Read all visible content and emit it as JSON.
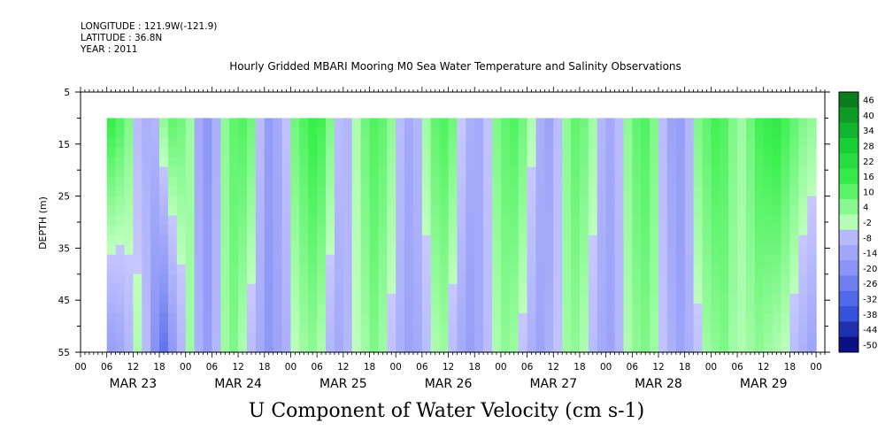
{
  "header": {
    "longitude": "LONGITUDE : 121.9W(-121.9)",
    "latitude": "LATITUDE : 36.8N",
    "year": "YEAR : 2011"
  },
  "chart_data": {
    "type": "heatmap",
    "title": "Hourly Gridded MBARI Mooring M0 Sea Water Temperature and Salinity Observations",
    "variable_label": "U Component of Water Velocity (cm s-1)",
    "ylabel": "DEPTH (m)",
    "ylim": [
      55,
      5
    ],
    "y_ticks": [
      5,
      15,
      25,
      35,
      45,
      55
    ],
    "x_hour_tick_labels": [
      "00",
      "06",
      "12",
      "18",
      "00",
      "06",
      "12",
      "18",
      "00",
      "06",
      "12",
      "18",
      "00",
      "06",
      "12",
      "18",
      "00",
      "06",
      "12",
      "18",
      "00",
      "06",
      "12",
      "18",
      "00",
      "06",
      "12",
      "18",
      "00"
    ],
    "x_day_labels": [
      "MAR 23",
      "MAR 24",
      "MAR 25",
      "MAR 26",
      "MAR 27",
      "MAR 28",
      "MAR 29"
    ],
    "data_depth_range_m": [
      10,
      55
    ],
    "data_time_range_hours_from_mar23_00": [
      7,
      168
    ],
    "colorbar_levels": [
      "46",
      "40",
      "34",
      "28",
      "22",
      "16",
      "10",
      "4",
      "-2",
      "-8",
      "-14",
      "-20",
      "-26",
      "-32",
      "-38",
      "-44",
      "-50"
    ],
    "colorbar_range": [
      -50,
      50
    ],
    "column_profiles": {
      "description_hours": [
        7,
        9,
        11,
        13,
        15,
        17,
        19,
        21,
        23,
        25,
        27,
        29,
        31,
        33,
        35,
        37,
        39,
        41,
        43,
        45,
        47,
        49,
        51,
        53,
        55,
        57,
        59,
        61,
        63,
        65,
        67,
        69,
        71,
        73,
        75,
        77,
        79,
        81,
        83,
        85,
        87,
        89,
        91,
        93,
        95,
        97,
        99,
        101,
        103,
        105,
        107,
        109,
        111,
        113,
        115,
        117,
        119,
        121,
        123,
        125,
        127,
        129,
        131,
        133,
        135,
        137,
        139,
        141,
        143,
        145,
        147,
        149,
        151,
        153,
        155,
        157,
        159,
        161,
        163,
        165,
        167
      ],
      "surface_u": [
        18,
        14,
        8,
        -4,
        -8,
        -6,
        6,
        12,
        10,
        4,
        -10,
        -16,
        -8,
        6,
        12,
        14,
        10,
        -4,
        -14,
        -10,
        -2,
        10,
        14,
        18,
        16,
        8,
        -4,
        -6,
        2,
        10,
        14,
        12,
        6,
        -4,
        -10,
        -6,
        4,
        12,
        14,
        10,
        0,
        -8,
        -10,
        -2,
        8,
        12,
        14,
        10,
        2,
        -8,
        -12,
        -4,
        6,
        12,
        10,
        4,
        -6,
        -10,
        -4,
        6,
        12,
        14,
        8,
        -4,
        -12,
        -14,
        -6,
        8,
        12,
        16,
        14,
        8,
        4,
        10,
        16,
        18,
        20,
        16,
        12,
        8,
        6
      ],
      "bottom_u": [
        -14,
        -12,
        -6,
        2,
        -4,
        -18,
        -26,
        -16,
        -6,
        4,
        -8,
        -14,
        -6,
        4,
        8,
        2,
        -4,
        -10,
        -16,
        -12,
        -8,
        0,
        4,
        6,
        2,
        -6,
        -10,
        -6,
        0,
        4,
        8,
        4,
        -2,
        -8,
        -12,
        -10,
        -4,
        2,
        4,
        -4,
        -10,
        -14,
        -10,
        -4,
        2,
        6,
        4,
        -2,
        -8,
        -12,
        -8,
        -2,
        4,
        6,
        2,
        -4,
        -10,
        -12,
        -6,
        2,
        6,
        8,
        4,
        -2,
        -8,
        -12,
        -8,
        -2,
        4,
        6,
        8,
        4,
        2,
        4,
        6,
        4,
        2,
        0,
        -4,
        -8,
        -12
      ]
    }
  }
}
